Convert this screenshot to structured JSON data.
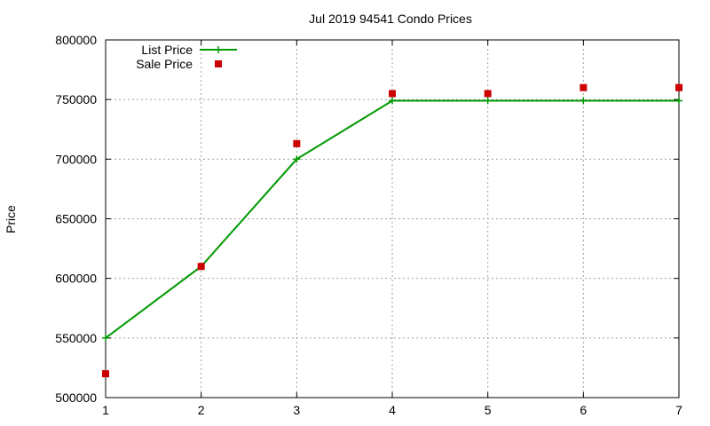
{
  "chart_data": {
    "type": "line",
    "title": "Jul 2019 94541 Condo Prices",
    "xlabel": "",
    "ylabel": "Price",
    "x": [
      1,
      2,
      3,
      4,
      5,
      6,
      7
    ],
    "xlim": [
      1,
      7
    ],
    "ylim": [
      500000,
      800000
    ],
    "xticks": [
      "1",
      "2",
      "3",
      "4",
      "5",
      "6",
      "7"
    ],
    "yticks": [
      "500000",
      "550000",
      "600000",
      "650000",
      "700000",
      "750000",
      "800000"
    ],
    "grid": true,
    "legend_position": "top-left",
    "series": [
      {
        "name": "List Price",
        "kind": "line-points",
        "marker": "plus",
        "color": "#009900",
        "values": [
          550000,
          610000,
          700000,
          749000,
          749000,
          749000,
          749000
        ]
      },
      {
        "name": "Sale Price",
        "kind": "points",
        "marker": "square",
        "color": "#cc0000",
        "values": [
          520000,
          610000,
          713000,
          755000,
          755000,
          760000,
          760000
        ]
      }
    ]
  }
}
